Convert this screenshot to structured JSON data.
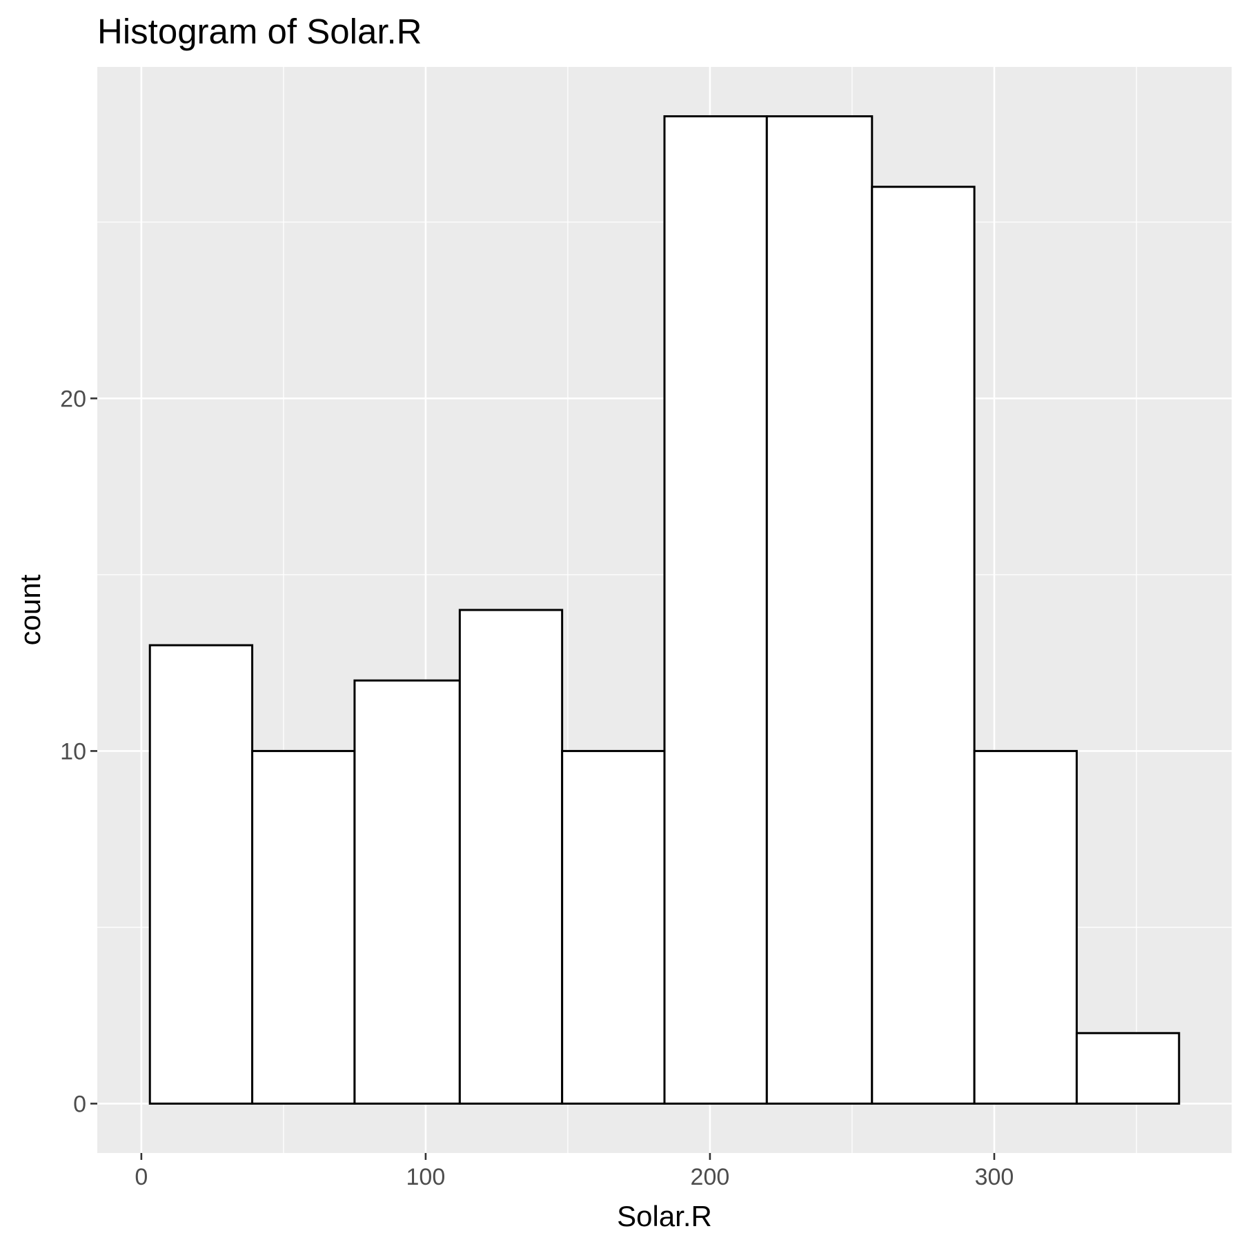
{
  "chart_data": {
    "type": "bar",
    "title": "Histogram of Solar.R",
    "xlabel": "Solar.R",
    "ylabel": "count",
    "bins": [
      {
        "x0": 3,
        "x1": 39,
        "count": 13
      },
      {
        "x0": 39,
        "x1": 75,
        "count": 10
      },
      {
        "x0": 75,
        "x1": 112,
        "count": 12
      },
      {
        "x0": 112,
        "x1": 148,
        "count": 14
      },
      {
        "x0": 148,
        "x1": 184,
        "count": 10
      },
      {
        "x0": 184,
        "x1": 220,
        "count": 28
      },
      {
        "x0": 220,
        "x1": 257,
        "count": 28
      },
      {
        "x0": 257,
        "x1": 293,
        "count": 26
      },
      {
        "x0": 293,
        "x1": 329,
        "count": 10
      },
      {
        "x0": 329,
        "x1": 365,
        "count": 2
      }
    ],
    "xlim": [
      -15.5,
      383.5
    ],
    "ylim": [
      -1.4,
      29.4
    ],
    "x_ticks": [
      0,
      100,
      200,
      300
    ],
    "x_tick_labels": [
      "0",
      "100",
      "200",
      "300"
    ],
    "x_minor_ticks": [
      50,
      150,
      250,
      350
    ],
    "y_ticks": [
      0,
      10,
      20
    ],
    "y_tick_labels": [
      "0",
      "10",
      "20"
    ],
    "y_minor_ticks": [
      5,
      15,
      25
    ],
    "grid": true,
    "legend": "none",
    "colors": {
      "panel_background": "#ebebeb",
      "grid": "#ffffff",
      "bar_fill": "#ffffff",
      "bar_outline": "#000000",
      "tick_label": "#4d4d4d",
      "tick_mark": "#333333"
    }
  }
}
